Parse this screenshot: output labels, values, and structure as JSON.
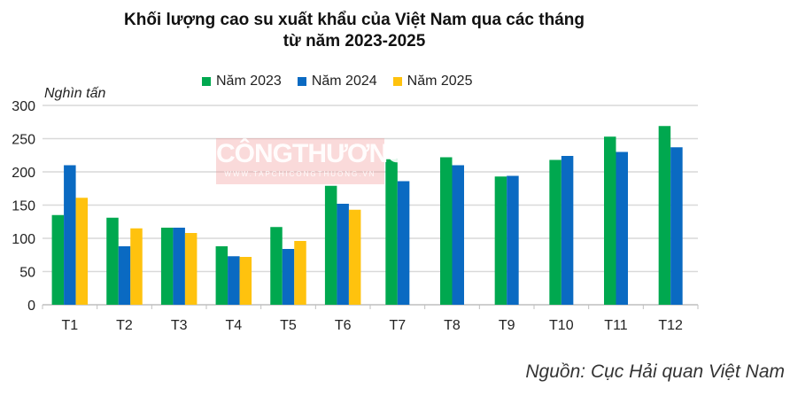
{
  "chart_data": {
    "type": "bar",
    "title": "Khối lượng cao su xuất khẩu của Việt Nam qua các tháng",
    "subtitle": "từ năm 2023-2025",
    "ylabel": "Nghìn tấn",
    "xlabel": "",
    "ylim": [
      0,
      300
    ],
    "yticks": [
      0,
      50,
      100,
      150,
      200,
      250,
      300
    ],
    "grid": true,
    "legend_position": "top",
    "categories": [
      "T1",
      "T2",
      "T3",
      "T4",
      "T5",
      "T6",
      "T7",
      "T8",
      "T9",
      "T10",
      "T11",
      "T12"
    ],
    "series": [
      {
        "name": "Năm 2023",
        "color": "#00a84f",
        "values": [
          135,
          131,
          116,
          88,
          117,
          179,
          219,
          222,
          193,
          218,
          253,
          269
        ]
      },
      {
        "name": "Năm 2024",
        "color": "#0a6ac2",
        "values": [
          210,
          88,
          116,
          73,
          84,
          152,
          186,
          210,
          194,
          224,
          230,
          237
        ]
      },
      {
        "name": "Năm 2025",
        "color": "#ffc20e",
        "values": [
          161,
          115,
          108,
          72,
          96,
          143,
          null,
          null,
          null,
          null,
          null,
          null
        ]
      }
    ],
    "source": "Nguồn: Cục Hải quan Việt Nam"
  },
  "watermark": {
    "main": "CÔNGTHƯƠNG",
    "url": "WWW.TAPCHICONGTHUONG.VN"
  }
}
